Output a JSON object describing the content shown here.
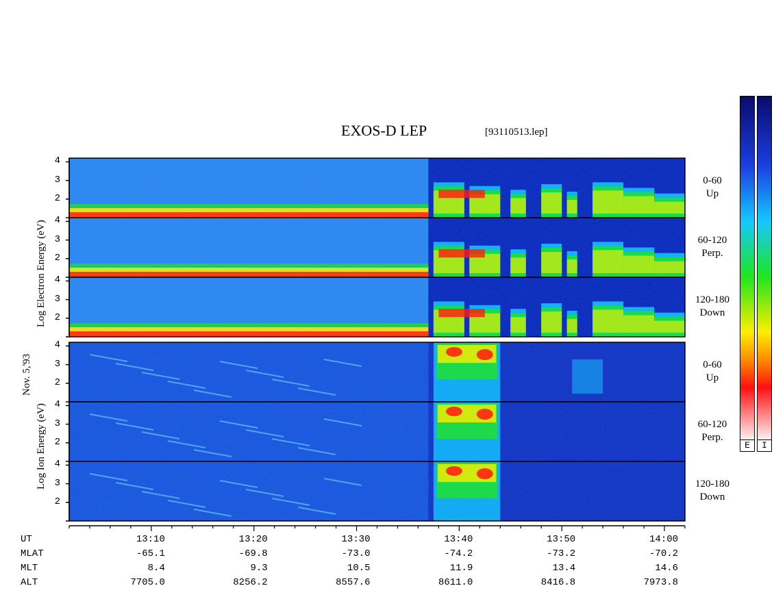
{
  "title": "EXOS-D LEP",
  "filename": "[93110513.lep]",
  "date_label": "Nov. 5,'93",
  "electron_axis_label": "Log   Electron   Energy  (eV)",
  "ion_axis_label": "Log   Ion   Energy  (eV)",
  "colorbar_labels": [
    "E",
    "I"
  ],
  "chart_data": {
    "type": "heatmap",
    "title": "EXOS-D LEP",
    "x_axis": {
      "label": "UT",
      "range": [
        "13:02",
        "14:02"
      ],
      "major_ticks": [
        "13:10",
        "13:20",
        "13:30",
        "13:40",
        "13:50",
        "14:00"
      ],
      "minor_tick_interval_min": 2
    },
    "y_axis": {
      "range": [
        1,
        4.2
      ],
      "ticks": [
        "2",
        "3",
        "4"
      ],
      "scale": "log energy (eV)"
    },
    "groups": [
      {
        "species": "Electron",
        "panels": [
          {
            "angle": "0-60",
            "direction": "Up"
          },
          {
            "angle": "60-120",
            "direction": "Perp."
          },
          {
            "angle": "120-180",
            "direction": "Down"
          }
        ]
      },
      {
        "species": "Ion",
        "panels": [
          {
            "angle": "0-60",
            "direction": "Up"
          },
          {
            "angle": "60-120",
            "direction": "Perp."
          },
          {
            "angle": "120-180",
            "direction": "Down"
          }
        ]
      }
    ],
    "ephemeris": [
      {
        "name": "MLAT",
        "values": [
          "-65.1",
          "-69.8",
          "-73.0",
          "-74.2",
          "-73.2",
          "-70.2"
        ]
      },
      {
        "name": "MLT",
        "values": [
          "8.4",
          "9.3",
          "10.5",
          "11.9",
          "13.4",
          "14.6"
        ]
      },
      {
        "name": "ALT",
        "values": [
          "7705.0",
          "8256.2",
          "8557.6",
          "8611.0",
          "8416.8",
          "7973.8"
        ]
      }
    ],
    "colorbar": {
      "colors_top_to_bottom": [
        "#0a0a6e",
        "#1a3fe0",
        "#14c8ff",
        "#1ee61e",
        "#ffee00",
        "#ff8c00",
        "#ff1010",
        "#ffffff"
      ]
    }
  }
}
